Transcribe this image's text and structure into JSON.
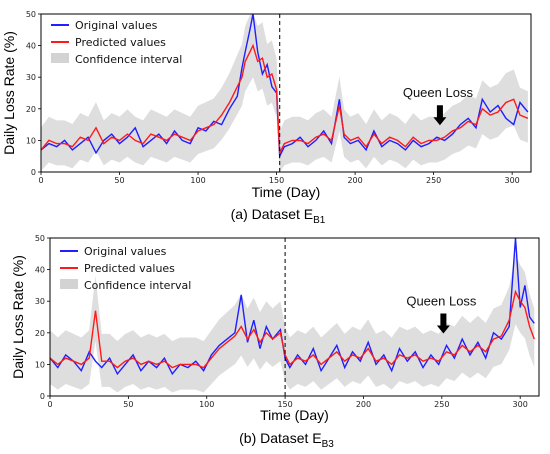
{
  "colors": {
    "original": "#1f1fff",
    "predicted": "#ff1a1a",
    "confidence": "#d3d3d3",
    "axis": "#000000"
  },
  "legend": {
    "original": "Original values",
    "predicted": "Predicted values",
    "confidence": "Confidence interval",
    "placement": "top-left"
  },
  "chart_data": [
    {
      "type": "line",
      "caption_prefix": "(a) Dataset E",
      "caption_sub": "B1",
      "xlabel": "Time (Day)",
      "ylabel": "Daily Loss Rate (%)",
      "xlim": [
        0,
        312
      ],
      "ylim": [
        0,
        50
      ],
      "xticks": [
        0,
        50,
        100,
        150,
        200,
        250,
        300
      ],
      "yticks": [
        0,
        10,
        20,
        30,
        40,
        50
      ],
      "split_day": 152,
      "annotation": {
        "text": "Queen Loss",
        "day": 254
      },
      "original": [
        [
          0,
          7
        ],
        [
          5,
          9
        ],
        [
          10,
          8
        ],
        [
          15,
          10
        ],
        [
          20,
          7
        ],
        [
          25,
          9
        ],
        [
          30,
          11
        ],
        [
          35,
          6
        ],
        [
          40,
          10
        ],
        [
          45,
          12
        ],
        [
          50,
          9
        ],
        [
          55,
          11
        ],
        [
          60,
          14
        ],
        [
          65,
          8
        ],
        [
          70,
          10
        ],
        [
          75,
          12
        ],
        [
          80,
          9
        ],
        [
          85,
          13
        ],
        [
          90,
          10
        ],
        [
          95,
          9
        ],
        [
          100,
          14
        ],
        [
          105,
          13
        ],
        [
          110,
          16
        ],
        [
          115,
          15
        ],
        [
          120,
          20
        ],
        [
          125,
          24
        ],
        [
          128,
          33
        ],
        [
          130,
          38
        ],
        [
          133,
          45
        ],
        [
          135,
          50
        ],
        [
          138,
          38
        ],
        [
          141,
          31
        ],
        [
          144,
          34
        ],
        [
          147,
          27
        ],
        [
          150,
          25
        ],
        [
          152,
          5
        ],
        [
          155,
          8
        ],
        [
          160,
          9
        ],
        [
          165,
          11
        ],
        [
          170,
          8
        ],
        [
          175,
          10
        ],
        [
          180,
          13
        ],
        [
          185,
          9
        ],
        [
          190,
          23
        ],
        [
          193,
          11
        ],
        [
          197,
          9
        ],
        [
          202,
          10
        ],
        [
          207,
          7
        ],
        [
          212,
          13
        ],
        [
          217,
          8
        ],
        [
          222,
          10
        ],
        [
          227,
          9
        ],
        [
          232,
          7
        ],
        [
          237,
          10
        ],
        [
          242,
          8
        ],
        [
          247,
          9
        ],
        [
          252,
          11
        ],
        [
          257,
          10
        ],
        [
          262,
          12
        ],
        [
          267,
          15
        ],
        [
          272,
          17
        ],
        [
          277,
          14
        ],
        [
          281,
          23
        ],
        [
          286,
          19
        ],
        [
          291,
          21
        ],
        [
          296,
          17
        ],
        [
          301,
          15
        ],
        [
          305,
          22
        ],
        [
          310,
          19
        ]
      ],
      "predicted": [
        [
          0,
          7
        ],
        [
          5,
          10
        ],
        [
          10,
          9
        ],
        [
          15,
          9
        ],
        [
          20,
          8
        ],
        [
          25,
          11
        ],
        [
          30,
          10
        ],
        [
          35,
          14
        ],
        [
          40,
          9
        ],
        [
          45,
          11
        ],
        [
          50,
          10
        ],
        [
          55,
          12
        ],
        [
          60,
          10
        ],
        [
          65,
          9
        ],
        [
          70,
          12
        ],
        [
          75,
          11
        ],
        [
          80,
          10
        ],
        [
          85,
          12
        ],
        [
          90,
          11
        ],
        [
          95,
          10
        ],
        [
          100,
          13
        ],
        [
          105,
          14
        ],
        [
          110,
          15
        ],
        [
          115,
          18
        ],
        [
          120,
          22
        ],
        [
          125,
          27
        ],
        [
          128,
          30
        ],
        [
          130,
          35
        ],
        [
          133,
          38
        ],
        [
          135,
          40
        ],
        [
          138,
          35
        ],
        [
          141,
          36
        ],
        [
          144,
          30
        ],
        [
          147,
          31
        ],
        [
          150,
          26
        ],
        [
          152,
          6
        ],
        [
          155,
          9
        ],
        [
          160,
          10
        ],
        [
          165,
          10
        ],
        [
          170,
          9
        ],
        [
          175,
          11
        ],
        [
          180,
          12
        ],
        [
          185,
          10
        ],
        [
          190,
          21
        ],
        [
          193,
          12
        ],
        [
          197,
          10
        ],
        [
          202,
          11
        ],
        [
          207,
          8
        ],
        [
          212,
          12
        ],
        [
          217,
          9
        ],
        [
          222,
          11
        ],
        [
          227,
          10
        ],
        [
          232,
          8
        ],
        [
          237,
          11
        ],
        [
          242,
          9
        ],
        [
          247,
          10
        ],
        [
          252,
          10
        ],
        [
          257,
          11
        ],
        [
          262,
          13
        ],
        [
          267,
          14
        ],
        [
          272,
          16
        ],
        [
          277,
          15
        ],
        [
          281,
          20
        ],
        [
          286,
          18
        ],
        [
          291,
          19
        ],
        [
          296,
          22
        ],
        [
          301,
          23
        ],
        [
          305,
          18
        ],
        [
          310,
          17
        ]
      ]
    },
    {
      "type": "line",
      "caption_prefix": "(b) Dataset E",
      "caption_sub": "B3",
      "xlabel": "Time (Day)",
      "ylabel": "Daily Loss Rate (%)",
      "xlim": [
        0,
        312
      ],
      "ylim": [
        0,
        50
      ],
      "xticks": [
        0,
        50,
        100,
        150,
        200,
        250,
        300
      ],
      "yticks": [
        0,
        10,
        20,
        30,
        40,
        50
      ],
      "split_day": 150,
      "annotation": {
        "text": "Queen Loss",
        "day": 251
      },
      "original": [
        [
          0,
          12
        ],
        [
          5,
          9
        ],
        [
          10,
          13
        ],
        [
          15,
          11
        ],
        [
          20,
          8
        ],
        [
          25,
          14
        ],
        [
          29,
          11
        ],
        [
          33,
          9
        ],
        [
          38,
          12
        ],
        [
          43,
          7
        ],
        [
          48,
          10
        ],
        [
          53,
          13
        ],
        [
          58,
          8
        ],
        [
          63,
          11
        ],
        [
          68,
          9
        ],
        [
          73,
          12
        ],
        [
          78,
          7
        ],
        [
          83,
          10
        ],
        [
          88,
          9
        ],
        [
          93,
          11
        ],
        [
          98,
          8
        ],
        [
          103,
          13
        ],
        [
          108,
          16
        ],
        [
          113,
          18
        ],
        [
          118,
          20
        ],
        [
          122,
          32
        ],
        [
          126,
          17
        ],
        [
          130,
          24
        ],
        [
          134,
          15
        ],
        [
          138,
          22
        ],
        [
          142,
          18
        ],
        [
          147,
          21
        ],
        [
          150,
          12
        ],
        [
          153,
          9
        ],
        [
          158,
          13
        ],
        [
          163,
          10
        ],
        [
          168,
          15
        ],
        [
          173,
          8
        ],
        [
          178,
          12
        ],
        [
          183,
          16
        ],
        [
          188,
          9
        ],
        [
          193,
          14
        ],
        [
          198,
          11
        ],
        [
          203,
          17
        ],
        [
          208,
          10
        ],
        [
          213,
          13
        ],
        [
          218,
          8
        ],
        [
          223,
          15
        ],
        [
          228,
          11
        ],
        [
          233,
          14
        ],
        [
          238,
          9
        ],
        [
          243,
          13
        ],
        [
          248,
          10
        ],
        [
          253,
          16
        ],
        [
          258,
          12
        ],
        [
          263,
          18
        ],
        [
          268,
          13
        ],
        [
          273,
          17
        ],
        [
          278,
          12
        ],
        [
          283,
          20
        ],
        [
          288,
          18
        ],
        [
          293,
          22
        ],
        [
          297,
          50
        ],
        [
          300,
          28
        ],
        [
          303,
          35
        ],
        [
          306,
          25
        ],
        [
          309,
          23
        ]
      ],
      "predicted": [
        [
          0,
          12
        ],
        [
          5,
          10
        ],
        [
          10,
          12
        ],
        [
          15,
          11
        ],
        [
          20,
          10
        ],
        [
          25,
          12
        ],
        [
          29,
          27
        ],
        [
          33,
          11
        ],
        [
          38,
          11
        ],
        [
          43,
          9
        ],
        [
          48,
          11
        ],
        [
          53,
          12
        ],
        [
          58,
          10
        ],
        [
          63,
          11
        ],
        [
          68,
          10
        ],
        [
          73,
          11
        ],
        [
          78,
          9
        ],
        [
          83,
          10
        ],
        [
          88,
          10
        ],
        [
          93,
          10
        ],
        [
          98,
          9
        ],
        [
          103,
          12
        ],
        [
          108,
          15
        ],
        [
          113,
          17
        ],
        [
          118,
          19
        ],
        [
          122,
          22
        ],
        [
          126,
          18
        ],
        [
          130,
          21
        ],
        [
          134,
          17
        ],
        [
          138,
          20
        ],
        [
          142,
          18
        ],
        [
          147,
          20
        ],
        [
          150,
          13
        ],
        [
          153,
          10
        ],
        [
          158,
          12
        ],
        [
          163,
          11
        ],
        [
          168,
          13
        ],
        [
          173,
          10
        ],
        [
          178,
          12
        ],
        [
          183,
          14
        ],
        [
          188,
          11
        ],
        [
          193,
          13
        ],
        [
          198,
          12
        ],
        [
          203,
          15
        ],
        [
          208,
          11
        ],
        [
          213,
          12
        ],
        [
          218,
          10
        ],
        [
          223,
          13
        ],
        [
          228,
          12
        ],
        [
          233,
          13
        ],
        [
          238,
          11
        ],
        [
          243,
          12
        ],
        [
          248,
          11
        ],
        [
          253,
          14
        ],
        [
          258,
          13
        ],
        [
          263,
          16
        ],
        [
          268,
          14
        ],
        [
          273,
          16
        ],
        [
          278,
          14
        ],
        [
          283,
          18
        ],
        [
          288,
          19
        ],
        [
          293,
          24
        ],
        [
          297,
          33
        ],
        [
          300,
          30
        ],
        [
          303,
          28
        ],
        [
          306,
          22
        ],
        [
          309,
          18
        ]
      ],
      "confidence_halfwidth": 7
    }
  ]
}
